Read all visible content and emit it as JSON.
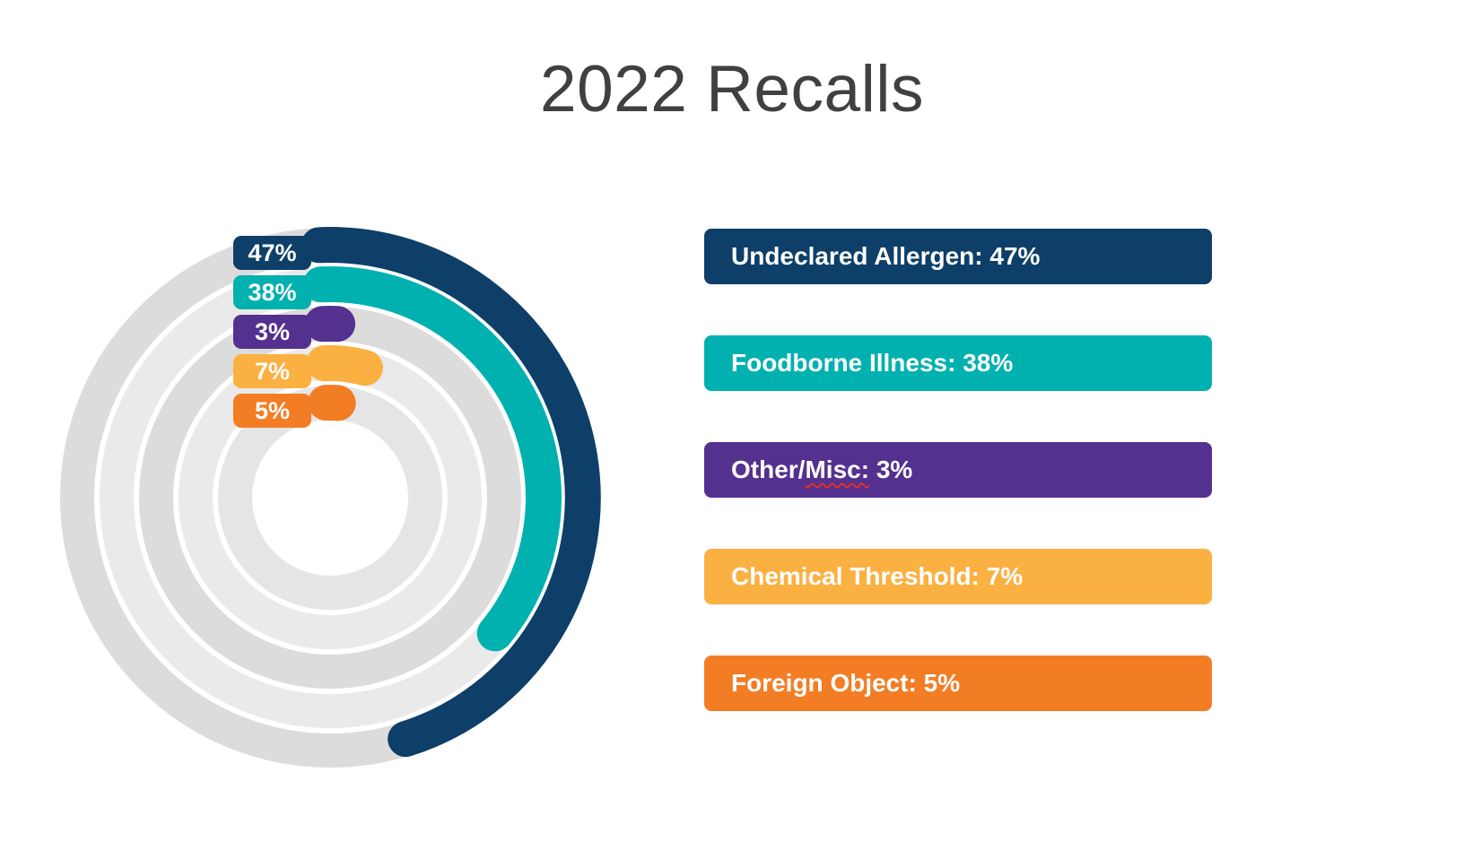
{
  "title": {
    "text": "2022 Recalls",
    "color": "#3f4041"
  },
  "spellcheck_color": "#dd3226",
  "chart_data": {
    "type": "bar",
    "variant": "radial-progress-rings",
    "title": "2022 Recalls",
    "unit": "%",
    "direction": "clockwise",
    "start_position": "top",
    "rings_order": "outer-to-inner",
    "max_value": 100,
    "legend_position": "right",
    "categories": [
      "Undeclared Allergen",
      "Foodborne Illness",
      "Other/Misc",
      "Chemical Threshold",
      "Foreign Object"
    ],
    "values": [
      47,
      38,
      3,
      7,
      5
    ],
    "series": [
      {
        "label": "Undeclared Allergen",
        "value": 47,
        "pct_label": "47%",
        "legend_text": "Undeclared Allergen: 47%",
        "color": "#0d3f69",
        "track_color": "#dcdcdc"
      },
      {
        "label": "Foodborne Illness",
        "value": 38,
        "pct_label": "38%",
        "legend_text": "Foodborne Illness: 38%",
        "color": "#00b1af",
        "track_color": "#eaeaea"
      },
      {
        "label": "Other/Misc",
        "value": 3,
        "pct_label": "3%",
        "legend_text": "Other/Misc: 3%",
        "spellcheck": {
          "pre": "Other/",
          "word": "Misc:",
          "post": " 3%"
        },
        "color": "#54308f",
        "track_color": "#dcdcdc"
      },
      {
        "label": "Chemical Threshold",
        "value": 7,
        "pct_label": "7%",
        "legend_text": "Chemical Threshold: 7%",
        "color": "#fbb042",
        "track_color": "#eaeaea"
      },
      {
        "label": "Foreign Object",
        "value": 5,
        "pct_label": "5%",
        "legend_text": "Foreign Object: 5%",
        "color": "#f37d24",
        "track_color": "#e5e5e5"
      }
    ]
  }
}
